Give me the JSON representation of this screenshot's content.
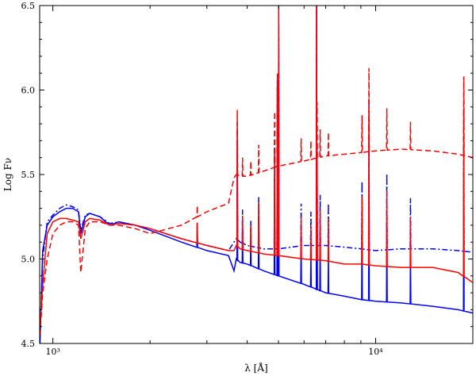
{
  "chart_data": {
    "type": "line",
    "title": "",
    "xlabel": "λ [Å]",
    "ylabel": "Log Fν",
    "xscale": "log",
    "xlim": [
      910,
      20000
    ],
    "ylim": [
      4.5,
      6.5
    ],
    "grid": false,
    "legend": "none",
    "x_ticks": [
      {
        "value": 1000,
        "label": "10³"
      },
      {
        "value": 10000,
        "label": "10⁴"
      }
    ],
    "y_ticks": [
      {
        "value": 4.5,
        "label": "4.5"
      },
      {
        "value": 5.0,
        "label": "5.0"
      },
      {
        "value": 5.5,
        "label": "5.5"
      },
      {
        "value": 6.0,
        "label": "6.0"
      },
      {
        "value": 6.5,
        "label": "6.5"
      }
    ],
    "series": [
      {
        "color": "#0000ff",
        "dash": "solid",
        "x": [
          912,
          930,
          960,
          1000,
          1050,
          1100,
          1150,
          1200,
          1220,
          1260,
          1300,
          1400,
          1500,
          1600,
          1800,
          2000,
          2500,
          3000,
          3500,
          3640,
          3700,
          3800,
          4000,
          4500,
          5000,
          6000,
          7000,
          8000,
          9000,
          10000,
          12000,
          15000,
          18000,
          20000
        ],
        "y": [
          4.5,
          5.05,
          5.2,
          5.25,
          5.28,
          5.3,
          5.3,
          5.28,
          5.15,
          5.25,
          5.27,
          5.25,
          5.2,
          5.22,
          5.2,
          5.17,
          5.1,
          5.05,
          5.02,
          4.93,
          5.0,
          4.98,
          4.97,
          4.93,
          4.9,
          4.85,
          4.8,
          4.78,
          4.76,
          4.75,
          4.74,
          4.72,
          4.7,
          4.68
        ]
      },
      {
        "color": "#0000ff",
        "dash": "dashdot",
        "x": [
          912,
          930,
          960,
          1000,
          1050,
          1100,
          1150,
          1200,
          1220,
          1260,
          1300,
          1400,
          1500,
          1600,
          1800,
          2000,
          2500,
          3000,
          3500,
          3640,
          3700,
          3800,
          4000,
          4500,
          5000,
          6000,
          7000,
          8000,
          9000,
          10000,
          12000,
          15000,
          18000,
          20000
        ],
        "y": [
          4.55,
          5.0,
          5.22,
          5.26,
          5.3,
          5.32,
          5.31,
          5.29,
          5.17,
          5.26,
          5.27,
          5.25,
          5.21,
          5.22,
          5.2,
          5.18,
          5.12,
          5.08,
          5.05,
          5.1,
          5.12,
          5.1,
          5.08,
          5.06,
          5.06,
          5.08,
          5.08,
          5.07,
          5.06,
          5.05,
          5.06,
          5.06,
          5.05,
          5.04
        ]
      },
      {
        "color": "#ff0000",
        "dash": "solid",
        "x": [
          912,
          930,
          960,
          1000,
          1050,
          1100,
          1150,
          1200,
          1220,
          1260,
          1300,
          1400,
          1500,
          1600,
          1800,
          2000,
          2500,
          3000,
          3500,
          3640,
          3700,
          3800,
          4000,
          4500,
          5000,
          6000,
          7000,
          8000,
          9000,
          10000,
          12000,
          15000,
          18000,
          20000
        ],
        "y": [
          4.6,
          4.85,
          5.15,
          5.22,
          5.24,
          5.24,
          5.23,
          5.22,
          5.12,
          5.22,
          5.24,
          5.23,
          5.2,
          5.21,
          5.2,
          5.18,
          5.12,
          5.08,
          5.05,
          5.05,
          5.08,
          5.06,
          5.05,
          5.03,
          5.02,
          5.0,
          4.99,
          4.97,
          4.97,
          4.96,
          4.95,
          4.95,
          4.92,
          4.86
        ]
      },
      {
        "color": "#ff0000",
        "dash": "dashed",
        "x": [
          912,
          930,
          960,
          1000,
          1050,
          1100,
          1150,
          1200,
          1220,
          1260,
          1300,
          1400,
          1500,
          1600,
          1800,
          2000,
          2500,
          3000,
          3500,
          3640,
          3700,
          3800,
          4000,
          4500,
          5000,
          6000,
          7000,
          8000,
          9000,
          10000,
          12000,
          15000,
          18000,
          20000
        ],
        "y": [
          4.55,
          4.8,
          5.0,
          5.15,
          5.2,
          5.22,
          5.22,
          5.2,
          4.92,
          5.18,
          5.22,
          5.22,
          5.2,
          5.2,
          5.18,
          5.15,
          5.2,
          5.28,
          5.33,
          5.48,
          5.5,
          5.49,
          5.49,
          5.52,
          5.55,
          5.58,
          5.61,
          5.62,
          5.63,
          5.64,
          5.65,
          5.64,
          5.62,
          5.6
        ]
      }
    ],
    "emission_lines": [
      {
        "x": 2800,
        "height": 0.12
      },
      {
        "x": 3727,
        "height": 0.7
      },
      {
        "x": 3869,
        "height": 0.2
      },
      {
        "x": 4102,
        "height": 0.15
      },
      {
        "x": 4340,
        "height": 0.3
      },
      {
        "x": 4861,
        "height": 0.6
      },
      {
        "x": 4959,
        "height": 1.0
      },
      {
        "x": 5007,
        "height": 1.5
      },
      {
        "x": 5876,
        "height": 0.25
      },
      {
        "x": 6300,
        "height": 0.2
      },
      {
        "x": 6563,
        "height": 1.7
      },
      {
        "x": 6584,
        "height": 0.6
      },
      {
        "x": 6731,
        "height": 0.3
      },
      {
        "x": 7136,
        "height": 0.25
      },
      {
        "x": 9069,
        "height": 0.4
      },
      {
        "x": 9532,
        "height": 0.9
      },
      {
        "x": 10830,
        "height": 0.45
      },
      {
        "x": 12820,
        "height": 0.3
      },
      {
        "x": 18750,
        "height": 0.85
      }
    ]
  }
}
